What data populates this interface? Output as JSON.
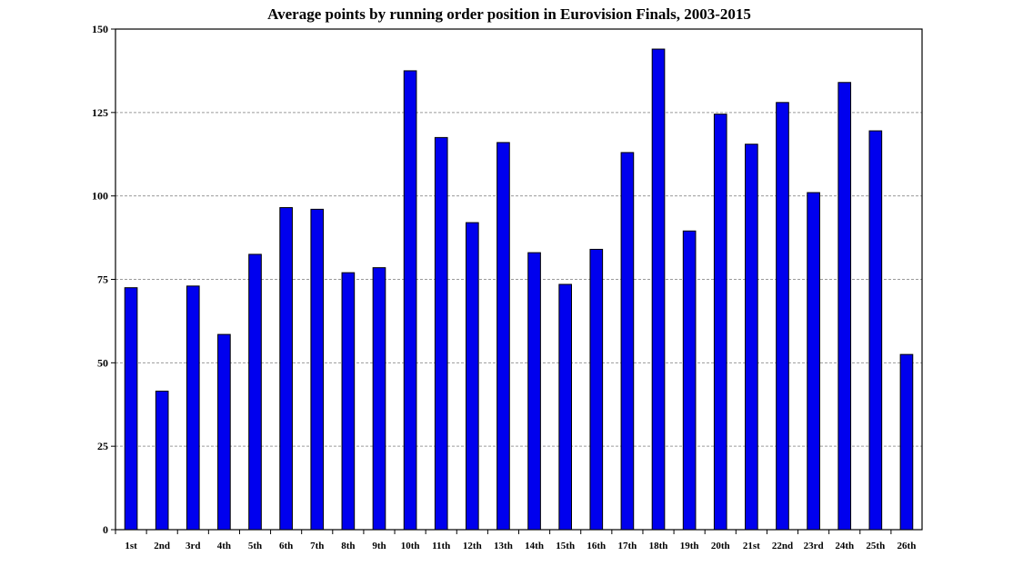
{
  "chart_data": {
    "type": "bar",
    "title": "Average points by running order position in Eurovision Finals, 2003-2015",
    "xlabel": "",
    "ylabel": "",
    "categories": [
      "1st",
      "2nd",
      "3rd",
      "4th",
      "5th",
      "6th",
      "7th",
      "8th",
      "9th",
      "10th",
      "11th",
      "12th",
      "13th",
      "14th",
      "15th",
      "16th",
      "17th",
      "18th",
      "19th",
      "20th",
      "21st",
      "22nd",
      "23rd",
      "24th",
      "25th",
      "26th"
    ],
    "values": [
      72.5,
      41.5,
      73,
      58.5,
      82.5,
      96.5,
      96,
      77,
      78.5,
      137.5,
      117.5,
      92,
      116,
      83,
      73.5,
      84,
      113,
      144,
      89.5,
      124.5,
      115.5,
      128,
      101,
      134,
      119.5,
      52.5
    ],
    "ylim": [
      0,
      150
    ],
    "yticks": [
      0,
      25,
      50,
      75,
      100,
      125,
      150
    ],
    "grid": true,
    "legend": "none",
    "colors": {
      "bar_fill": "#0000ee",
      "bar_stroke": "#000000",
      "grid": "#9a9a9a",
      "axis": "#000000"
    }
  }
}
